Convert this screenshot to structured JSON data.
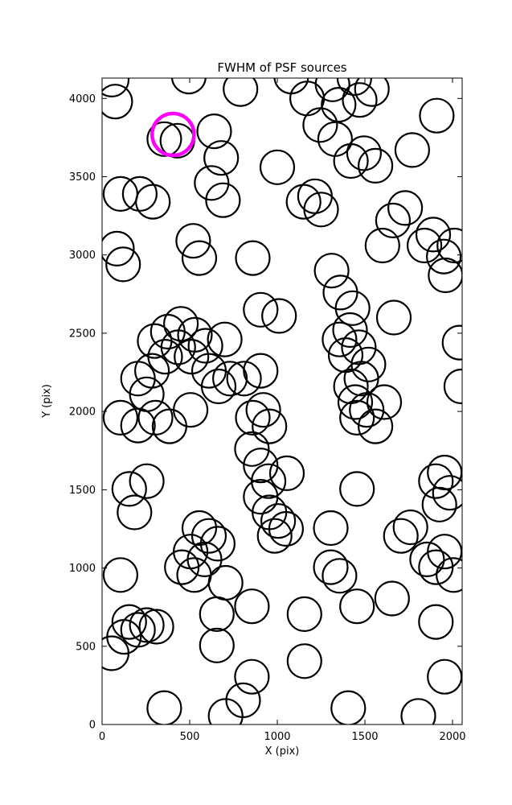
{
  "title": "FWHM of PSF sources",
  "axes": {
    "xlabel": "X (pix)",
    "ylabel": "Y (pix)"
  },
  "colors": {
    "background": "#ffffff",
    "axes": "#000000",
    "marker": "#000000",
    "highlight": "#ff00ff"
  },
  "chart_data": {
    "type": "scatter",
    "title": "FWHM of PSF sources",
    "xlabel": "X (pix)",
    "ylabel": "Y (pix)",
    "xlim": [
      0,
      2055
    ],
    "ylim": [
      0,
      4130
    ],
    "xticks": [
      0,
      500,
      1000,
      1500,
      2000
    ],
    "yticks": [
      0,
      500,
      1000,
      1500,
      2000,
      2500,
      3000,
      3500,
      4000
    ],
    "grid": false,
    "legend": false,
    "marker": {
      "shape": "circle",
      "fill": "none",
      "stroke": "#000000",
      "stroke_width": 2.2,
      "radius_px": 21
    },
    "highlight": {
      "x": 405,
      "y": 3770,
      "stroke": "#ff00ff",
      "stroke_width": 4.5,
      "radius_px": 26
    },
    "points": [
      [
        75,
        3980
      ],
      [
        55,
        4120
      ],
      [
        495,
        4140
      ],
      [
        790,
        4060
      ],
      [
        1080,
        4140
      ],
      [
        1170,
        4000
      ],
      [
        1315,
        4090
      ],
      [
        1350,
        3960
      ],
      [
        1440,
        4130
      ],
      [
        1470,
        3990
      ],
      [
        1540,
        4060
      ],
      [
        1910,
        3890
      ],
      [
        355,
        3740
      ],
      [
        430,
        3730
      ],
      [
        640,
        3790
      ],
      [
        680,
        3620
      ],
      [
        1000,
        3560
      ],
      [
        1245,
        3830
      ],
      [
        1330,
        3740
      ],
      [
        1420,
        3600
      ],
      [
        1495,
        3650
      ],
      [
        1560,
        3570
      ],
      [
        1770,
        3670
      ],
      [
        105,
        3390
      ],
      [
        215,
        3390
      ],
      [
        290,
        3340
      ],
      [
        625,
        3460
      ],
      [
        690,
        3350
      ],
      [
        1150,
        3340
      ],
      [
        1215,
        3375
      ],
      [
        1250,
        3290
      ],
      [
        1660,
        3220
      ],
      [
        1730,
        3300
      ],
      [
        85,
        3040
      ],
      [
        120,
        2940
      ],
      [
        520,
        3090
      ],
      [
        555,
        2980
      ],
      [
        860,
        2980
      ],
      [
        1310,
        2900
      ],
      [
        1600,
        3060
      ],
      [
        1840,
        3060
      ],
      [
        1890,
        3130
      ],
      [
        1950,
        2990
      ],
      [
        2010,
        3060
      ],
      [
        1960,
        2870
      ],
      [
        905,
        2650
      ],
      [
        1360,
        2760
      ],
      [
        1430,
        2660
      ],
      [
        1665,
        2600
      ],
      [
        2040,
        2440
      ],
      [
        300,
        2450
      ],
      [
        375,
        2510
      ],
      [
        450,
        2560
      ],
      [
        530,
        2490
      ],
      [
        360,
        2350
      ],
      [
        435,
        2410
      ],
      [
        510,
        2350
      ],
      [
        590,
        2420
      ],
      [
        700,
        2460
      ],
      [
        1010,
        2610
      ],
      [
        1355,
        2460
      ],
      [
        1415,
        2520
      ],
      [
        1390,
        2360
      ],
      [
        1465,
        2410
      ],
      [
        1520,
        2300
      ],
      [
        205,
        2210
      ],
      [
        285,
        2260
      ],
      [
        255,
        2110
      ],
      [
        610,
        2260
      ],
      [
        665,
        2160
      ],
      [
        730,
        2210
      ],
      [
        810,
        2210
      ],
      [
        905,
        2260
      ],
      [
        1420,
        2160
      ],
      [
        1480,
        2210
      ],
      [
        1445,
        2060
      ],
      [
        2050,
        2160
      ],
      [
        105,
        1960
      ],
      [
        205,
        1910
      ],
      [
        305,
        1960
      ],
      [
        385,
        1905
      ],
      [
        505,
        2010
      ],
      [
        860,
        1960
      ],
      [
        920,
        2010
      ],
      [
        955,
        1905
      ],
      [
        1455,
        1960
      ],
      [
        1510,
        2010
      ],
      [
        1560,
        1905
      ],
      [
        1610,
        2060
      ],
      [
        855,
        1760
      ],
      [
        905,
        1655
      ],
      [
        950,
        1555
      ],
      [
        905,
        1455
      ],
      [
        1055,
        1605
      ],
      [
        155,
        1505
      ],
      [
        255,
        1555
      ],
      [
        185,
        1355
      ],
      [
        1455,
        1505
      ],
      [
        1905,
        1555
      ],
      [
        1955,
        1610
      ],
      [
        1985,
        1480
      ],
      [
        1925,
        1405
      ],
      [
        955,
        1355
      ],
      [
        1005,
        1300
      ],
      [
        1050,
        1250
      ],
      [
        985,
        1205
      ],
      [
        555,
        1255
      ],
      [
        610,
        1205
      ],
      [
        660,
        1155
      ],
      [
        505,
        1105
      ],
      [
        585,
        1055
      ],
      [
        1305,
        1255
      ],
      [
        1705,
        1205
      ],
      [
        1760,
        1260
      ],
      [
        105,
        955
      ],
      [
        455,
        1005
      ],
      [
        525,
        955
      ],
      [
        705,
        905
      ],
      [
        1305,
        1005
      ],
      [
        1355,
        950
      ],
      [
        1855,
        1055
      ],
      [
        1905,
        1005
      ],
      [
        1955,
        1105
      ],
      [
        2005,
        955
      ],
      [
        155,
        655
      ],
      [
        205,
        605
      ],
      [
        255,
        635
      ],
      [
        310,
        625
      ],
      [
        125,
        560
      ],
      [
        655,
        705
      ],
      [
        855,
        755
      ],
      [
        1155,
        705
      ],
      [
        1455,
        755
      ],
      [
        1655,
        805
      ],
      [
        1905,
        655
      ],
      [
        55,
        455
      ],
      [
        655,
        505
      ],
      [
        1155,
        405
      ],
      [
        855,
        305
      ],
      [
        1955,
        305
      ],
      [
        355,
        105
      ],
      [
        705,
        55
      ],
      [
        805,
        155
      ],
      [
        1405,
        105
      ],
      [
        1805,
        55
      ]
    ]
  }
}
